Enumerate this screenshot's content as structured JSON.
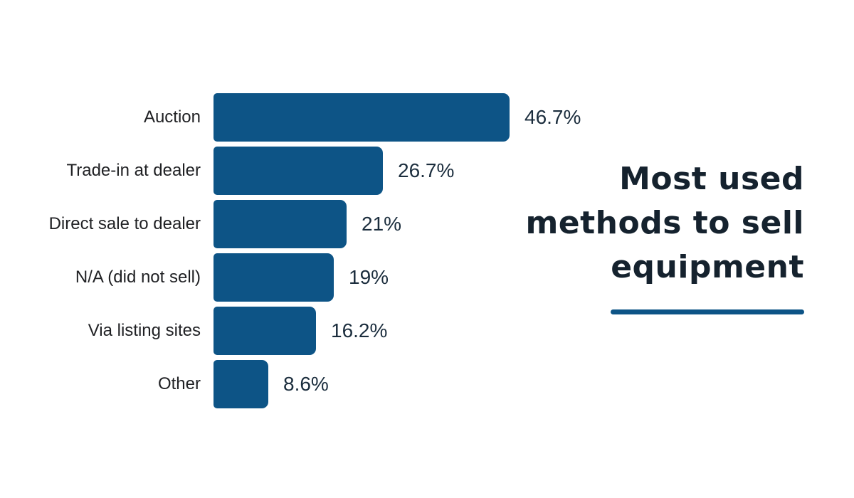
{
  "title": {
    "text": "Most used methods to sell equipment",
    "lines": [
      "Most used",
      "methods to sell",
      "equipment"
    ]
  },
  "colors": {
    "background": "#ffffff",
    "bar": "#0d5486",
    "underline": "#0d5486",
    "title_text": "#15222e",
    "category_text": "#202124",
    "value_text": "#1b2d3d"
  },
  "chart_data": {
    "type": "bar",
    "orientation": "horizontal",
    "title": "Most used methods to sell equipment",
    "categories": [
      "Auction",
      "Trade-in at dealer",
      "Direct sale to dealer",
      "N/A (did not sell)",
      "Via listing sites",
      "Other"
    ],
    "values": [
      46.7,
      26.7,
      21,
      19,
      16.2,
      8.6
    ],
    "value_labels": [
      "46.7%",
      "26.7%",
      "21%",
      "19%",
      "16.2%",
      "8.6%"
    ],
    "xlabel": "",
    "ylabel": "",
    "xlim": [
      0,
      46.7
    ],
    "grid": false,
    "legend": false,
    "axes_shown": false
  }
}
